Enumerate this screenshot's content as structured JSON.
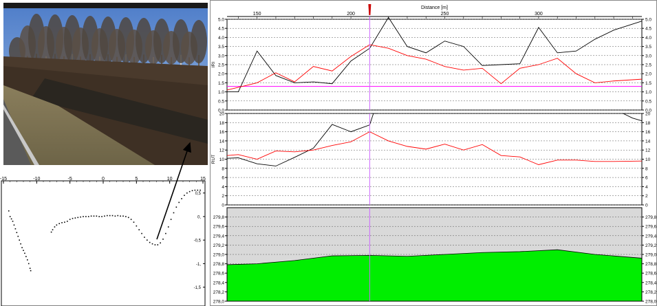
{
  "photo": {
    "description_icon": "roadside-ditch-photo"
  },
  "profile": {
    "x_ticks": [
      "-15",
      "-10",
      "-5",
      "0",
      "5",
      "10",
      "15"
    ],
    "y_ticks": [
      "0,5",
      "0,",
      "-0,5",
      "-1,",
      "-1,5"
    ],
    "xlim": [
      -15,
      15
    ],
    "ylim": [
      -1.9,
      0.7
    ],
    "points": [
      [
        -14.2,
        0.12
      ],
      [
        -14.0,
        0.0
      ],
      [
        -13.8,
        -0.05
      ],
      [
        -13.6,
        -0.1
      ],
      [
        -13.4,
        -0.18
      ],
      [
        -13.2,
        -0.26
      ],
      [
        -13.0,
        -0.34
      ],
      [
        -12.8,
        -0.42
      ],
      [
        -12.6,
        -0.5
      ],
      [
        -12.4,
        -0.58
      ],
      [
        -12.2,
        -0.66
      ],
      [
        -12.0,
        -0.72
      ],
      [
        -11.8,
        -0.78
      ],
      [
        -11.6,
        -0.85
      ],
      [
        -11.4,
        -0.92
      ],
      [
        -11.2,
        -1.0
      ],
      [
        -11.0,
        -1.1
      ],
      [
        -10.9,
        -1.15
      ],
      [
        -7.8,
        -0.33
      ],
      [
        -7.6,
        -0.28
      ],
      [
        -7.3,
        -0.22
      ],
      [
        -7.0,
        -0.18
      ],
      [
        -6.6,
        -0.15
      ],
      [
        -6.2,
        -0.13
      ],
      [
        -5.8,
        -0.12
      ],
      [
        -5.4,
        -0.1
      ],
      [
        -5.0,
        -0.06
      ],
      [
        -4.6,
        -0.04
      ],
      [
        -4.2,
        -0.03
      ],
      [
        -3.8,
        -0.02
      ],
      [
        -3.4,
        -0.01
      ],
      [
        -3.0,
        0.0
      ],
      [
        -2.6,
        0.0
      ],
      [
        -2.2,
        0.0
      ],
      [
        -1.8,
        0.01
      ],
      [
        -1.4,
        0.01
      ],
      [
        -1.0,
        0.01
      ],
      [
        -0.6,
        0.0
      ],
      [
        -0.2,
        0.0
      ],
      [
        0.2,
        0.01
      ],
      [
        0.6,
        0.02
      ],
      [
        1.0,
        0.02
      ],
      [
        1.4,
        0.02
      ],
      [
        1.8,
        0.01
      ],
      [
        2.2,
        0.02
      ],
      [
        2.6,
        0.01
      ],
      [
        3.0,
        0.01
      ],
      [
        3.4,
        0.0
      ],
      [
        3.8,
        -0.02
      ],
      [
        4.2,
        -0.06
      ],
      [
        4.6,
        -0.12
      ],
      [
        5.0,
        -0.2
      ],
      [
        5.4,
        -0.28
      ],
      [
        5.8,
        -0.36
      ],
      [
        6.2,
        -0.44
      ],
      [
        6.6,
        -0.5
      ],
      [
        7.0,
        -0.55
      ],
      [
        7.4,
        -0.58
      ],
      [
        7.8,
        -0.6
      ],
      [
        8.2,
        -0.6
      ],
      [
        8.6,
        -0.56
      ],
      [
        9.0,
        -0.48
      ],
      [
        9.4,
        -0.36
      ],
      [
        9.8,
        -0.22
      ],
      [
        10.2,
        -0.06
      ],
      [
        10.6,
        0.08
      ],
      [
        11.0,
        0.2
      ],
      [
        11.4,
        0.3
      ],
      [
        11.8,
        0.38
      ],
      [
        12.2,
        0.45
      ],
      [
        12.6,
        0.5
      ],
      [
        13.0,
        0.53
      ],
      [
        13.4,
        0.55
      ],
      [
        13.8,
        0.56
      ],
      [
        14.2,
        0.56
      ],
      [
        14.6,
        0.56
      ]
    ]
  },
  "chart_data": [
    {
      "type": "line",
      "ylabel": "IRI",
      "xlabel": "Distance [m]",
      "xlim": [
        134,
        355
      ],
      "ylim": [
        0.0,
        5.0
      ],
      "x_ticks": [
        "150",
        "200",
        "250",
        "300"
      ],
      "y_ticks": [
        "0.0",
        "0.5",
        "1.0",
        "1.5",
        "2.0",
        "2.5",
        "3.0",
        "3.5",
        "4.0",
        "4.5",
        "5.0"
      ],
      "threshold": 1.3,
      "cursor_x": 210,
      "series": [
        {
          "color": "#000000",
          "x": [
            134,
            140,
            150,
            160,
            170,
            180,
            190,
            200,
            210,
            220,
            230,
            240,
            250,
            260,
            270,
            280,
            290,
            300,
            310,
            320,
            330,
            340,
            355
          ],
          "y": [
            1.0,
            1.0,
            3.25,
            1.9,
            1.5,
            1.55,
            1.45,
            2.7,
            3.4,
            5.1,
            3.5,
            3.15,
            3.8,
            3.5,
            2.45,
            2.5,
            2.55,
            4.55,
            3.15,
            3.25,
            3.9,
            4.4,
            4.9
          ]
        },
        {
          "color": "#ff0000",
          "x": [
            134,
            150,
            160,
            170,
            180,
            190,
            200,
            210,
            220,
            230,
            240,
            250,
            260,
            270,
            280,
            290,
            300,
            310,
            320,
            330,
            340,
            355
          ],
          "y": [
            1.1,
            1.5,
            2.05,
            1.55,
            2.4,
            2.15,
            2.95,
            3.6,
            3.4,
            3.0,
            2.8,
            2.4,
            2.2,
            2.3,
            1.45,
            2.3,
            2.5,
            2.85,
            2.0,
            1.5,
            1.6,
            1.7
          ]
        }
      ]
    },
    {
      "type": "line",
      "ylabel": "RUT",
      "xlim": [
        134,
        355
      ],
      "ylim": [
        0,
        20
      ],
      "y_ticks": [
        "0",
        "2",
        "4",
        "6",
        "8",
        "10",
        "12",
        "14",
        "16",
        "18",
        "20"
      ],
      "cursor_x": 210,
      "series": [
        {
          "color": "#000000",
          "x": [
            134,
            140,
            150,
            160,
            170,
            180,
            190,
            200,
            210,
            212,
            214
          ],
          "y": [
            10.2,
            10.3,
            9.0,
            8.5,
            10.4,
            12.4,
            17.6,
            16.0,
            17.5,
            20.0,
            20.0
          ]
        },
        {
          "color": "#000000",
          "x": [
            345,
            350,
            355
          ],
          "y": [
            20.0,
            19.0,
            18.4
          ]
        },
        {
          "color": "#ff0000",
          "x": [
            134,
            140,
            150,
            160,
            170,
            180,
            190,
            200,
            210,
            220,
            230,
            240,
            250,
            260,
            270,
            280,
            290,
            300,
            310,
            320,
            330,
            340,
            355
          ],
          "y": [
            10.8,
            11.0,
            10.0,
            11.8,
            11.6,
            12.0,
            13.0,
            13.8,
            16.0,
            14.0,
            12.8,
            12.2,
            13.3,
            12.0,
            13.2,
            10.8,
            10.5,
            8.8,
            9.8,
            9.8,
            9.5,
            9.5,
            9.6
          ]
        }
      ]
    },
    {
      "type": "area",
      "xlim": [
        134,
        355
      ],
      "ylim": [
        278.0,
        280.0
      ],
      "y_ticks": [
        "278,0",
        "278,2",
        "278,4",
        "278,6",
        "278,8",
        "279,0",
        "279,2",
        "279,4",
        "279,6",
        "279,8"
      ],
      "cursor_x": 210,
      "fill_color": "#00ee00",
      "background_color": "#d9d9d9",
      "x": [
        134,
        150,
        170,
        190,
        210,
        230,
        250,
        270,
        290,
        310,
        330,
        355
      ],
      "y": [
        278.78,
        278.8,
        278.87,
        278.97,
        278.98,
        278.96,
        279.0,
        279.04,
        279.06,
        279.1,
        279.0,
        278.92
      ]
    }
  ]
}
